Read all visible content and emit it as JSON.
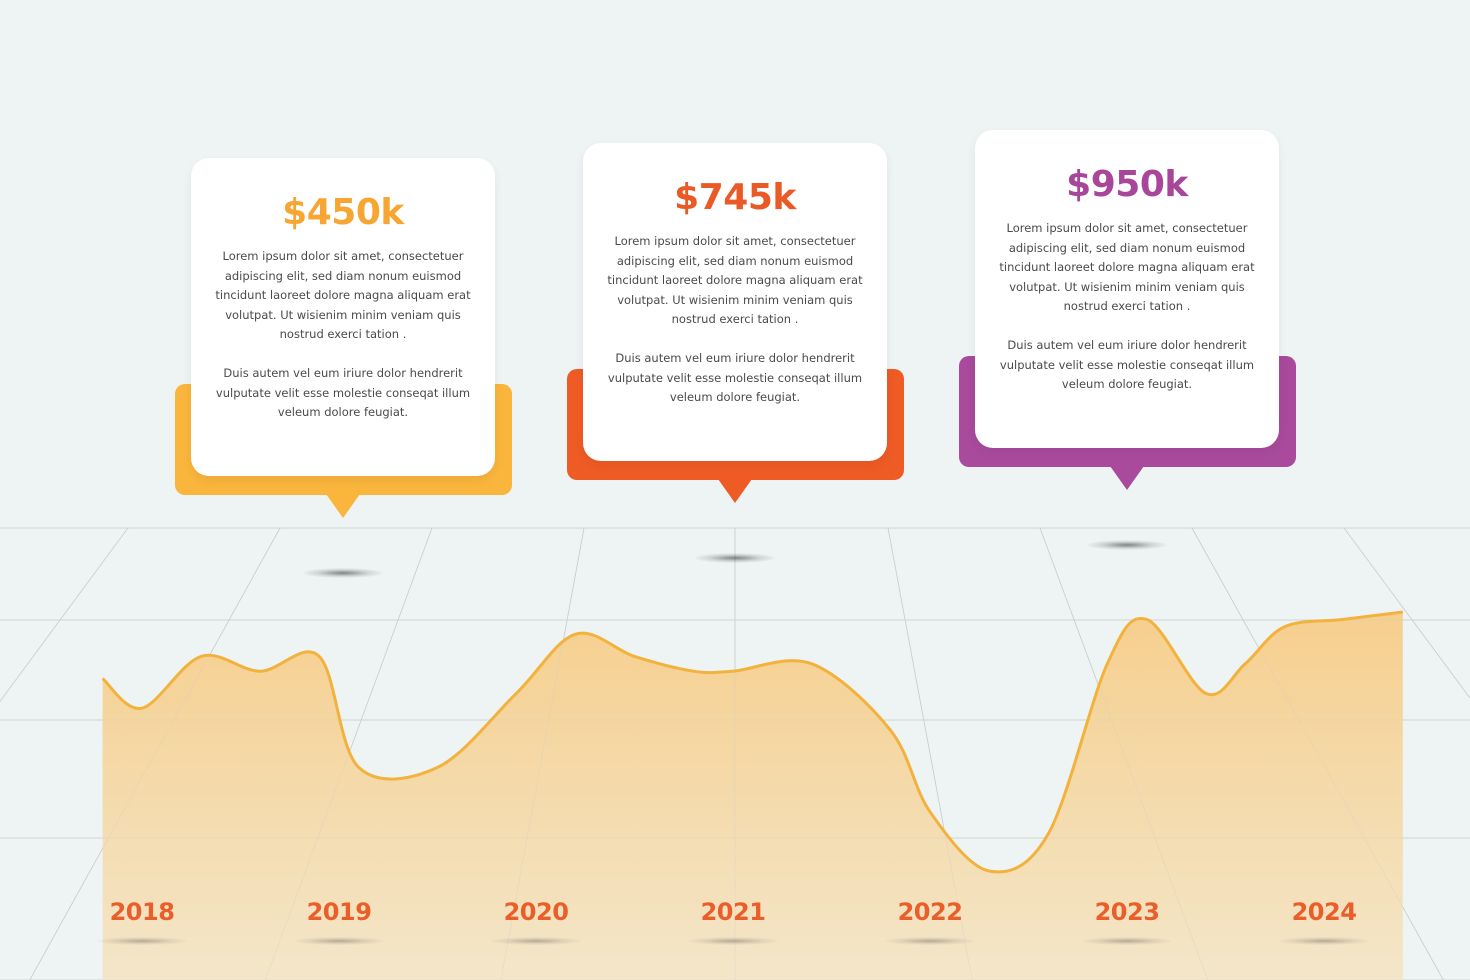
{
  "colors": {
    "background": "#eef4f4",
    "area_fill_top": "#f6cf8e",
    "area_fill_bottom": "#f3e6c9",
    "area_line": "#f2b23e",
    "year_text": "#ea5e2a",
    "grid_line": "#c9cccc"
  },
  "cards": [
    {
      "value": "$450k",
      "value_color": "#f7a633",
      "accent_color": "#f9b53c",
      "paragraph1": "Lorem ipsum dolor sit amet, consectetuer adipiscing elit, sed diam nonum euismod tincidunt laoreet dolore magna aliquam erat volutpat. Ut wisienim minim veniam quis nostrud exerci tation .",
      "paragraph2": "Duis autem vel eum iriure dolor hendrerit vulputate velit esse molestie conseqat illum veleum dolore feugiat."
    },
    {
      "value": "$745k",
      "value_color": "#ea5a26",
      "accent_color": "#ef5b25",
      "paragraph1": "Lorem ipsum dolor sit amet, consectetuer adipiscing elit, sed diam nonum euismod tincidunt laoreet dolore magna aliquam erat volutpat. Ut wisienim minim veniam quis nostrud exerci tation .",
      "paragraph2": "Duis autem vel eum iriure dolor hendrerit vulputate velit esse molestie conseqat illum veleum dolore feugiat."
    },
    {
      "value": "$950k",
      "value_color": "#a8469a",
      "accent_color": "#a94a9c",
      "paragraph1": "Lorem ipsum dolor sit amet, consectetuer adipiscing elit, sed diam nonum euismod tincidunt laoreet dolore magna aliquam erat volutpat. Ut wisienim minim veniam quis nostrud exerci tation .",
      "paragraph2": "Duis autem vel eum iriure dolor hendrerit vulputate velit esse molestie conseqat illum veleum dolore feugiat."
    }
  ],
  "chart_data": {
    "type": "area",
    "title": "",
    "xlabel": "",
    "ylabel": "",
    "categories": [
      "2018",
      "2019",
      "2020",
      "2021",
      "2022",
      "2023",
      "2024"
    ],
    "grid": true,
    "legend": "none",
    "annotations": [
      {
        "category": "2019",
        "label": "$450k"
      },
      {
        "category": "2021",
        "label": "$745k"
      },
      {
        "category": "2023",
        "label": "$950k"
      }
    ],
    "series": [
      {
        "x": [
          2017.8,
          2018.0,
          2018.3,
          2018.6,
          2018.9,
          2019.1,
          2019.5,
          2019.9,
          2020.2,
          2020.5,
          2020.8,
          2021.0,
          2021.4,
          2021.8,
          2022.0,
          2022.3,
          2022.6,
          2022.9,
          2023.1,
          2023.4,
          2023.6,
          2023.8,
          2024.1,
          2024.4
        ],
        "values": [
          6.1,
          5.7,
          6.4,
          6.2,
          6.4,
          4.9,
          4.9,
          5.9,
          6.7,
          6.4,
          6.2,
          6.2,
          6.3,
          5.4,
          4.3,
          3.5,
          4.0,
          6.3,
          6.9,
          5.9,
          6.3,
          6.8,
          6.9,
          7.0
        ]
      }
    ],
    "ylim": [
      0,
      10
    ]
  }
}
